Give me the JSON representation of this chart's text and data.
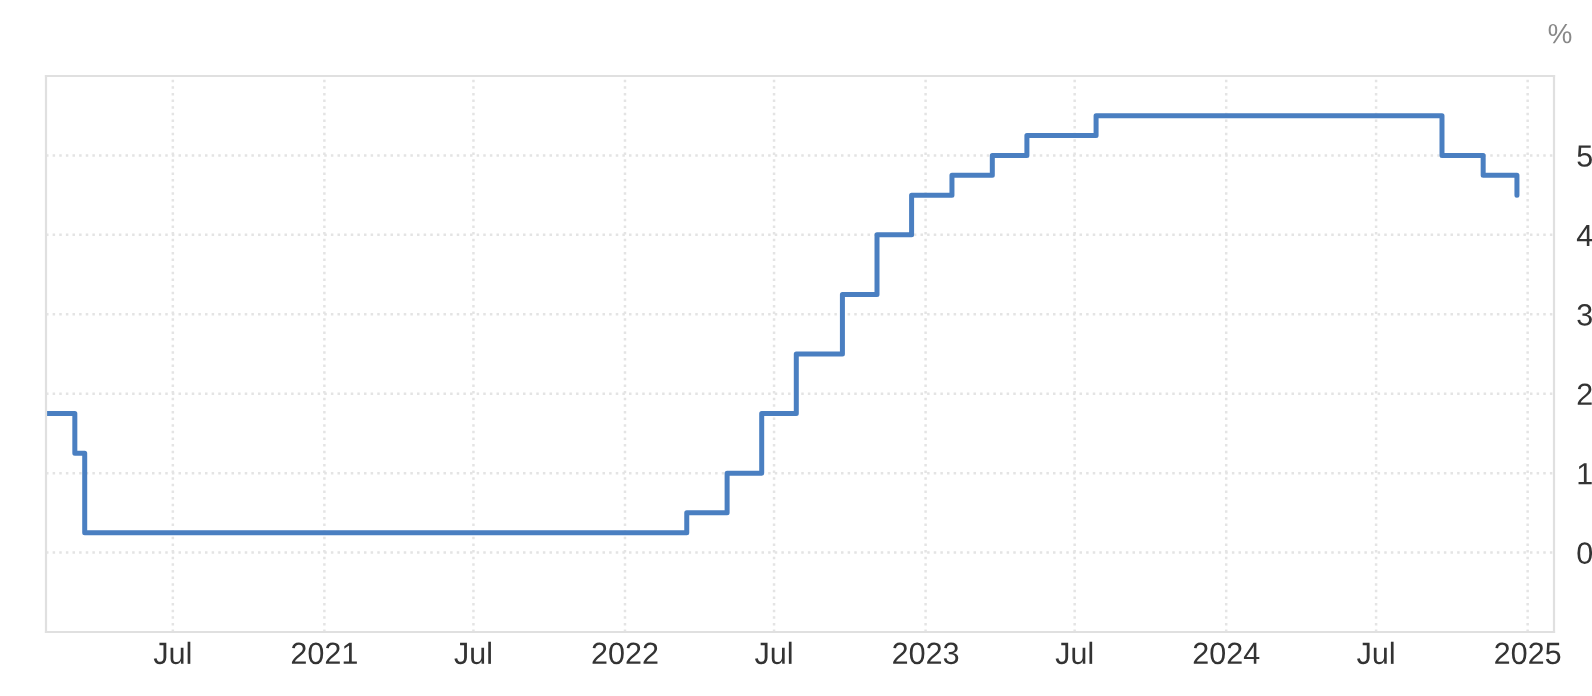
{
  "chart_data": {
    "type": "step",
    "ylabel": "%",
    "x": [
      "2020-01-29",
      "2020-03-04",
      "2020-03-16",
      "2022-03-17",
      "2022-05-05",
      "2022-06-16",
      "2022-07-28",
      "2022-09-22",
      "2022-11-03",
      "2022-12-15",
      "2023-02-02",
      "2023-03-23",
      "2023-05-04",
      "2023-07-27",
      "2024-09-19",
      "2024-11-08",
      "2024-12-19"
    ],
    "series": [
      {
        "color": "#4a7fc1",
        "values": [
          1.75,
          1.25,
          0.25,
          0.5,
          1.0,
          1.75,
          2.5,
          3.25,
          4.0,
          4.5,
          4.75,
          5.0,
          5.25,
          5.5,
          5.0,
          4.75,
          4.5
        ]
      }
    ],
    "xlim": [
      "2020-01-29",
      "2025-02-02"
    ],
    "xticks": [
      {
        "value": "2020-07-01",
        "label": "Jul"
      },
      {
        "value": "2021-01-01",
        "label": "2021"
      },
      {
        "value": "2021-07-01",
        "label": "Jul"
      },
      {
        "value": "2022-01-01",
        "label": "2022"
      },
      {
        "value": "2022-07-01",
        "label": "Jul"
      },
      {
        "value": "2023-01-01",
        "label": "2023"
      },
      {
        "value": "2023-07-01",
        "label": "Jul"
      },
      {
        "value": "2024-01-01",
        "label": "2024"
      },
      {
        "value": "2024-07-01",
        "label": "Jul"
      },
      {
        "value": "2025-01-01",
        "label": "2025"
      }
    ],
    "ylim": [
      -1,
      6
    ],
    "yticks": [
      0,
      1,
      2,
      3,
      4,
      5
    ],
    "grid": true,
    "line_style": "solid",
    "marker": "none"
  }
}
